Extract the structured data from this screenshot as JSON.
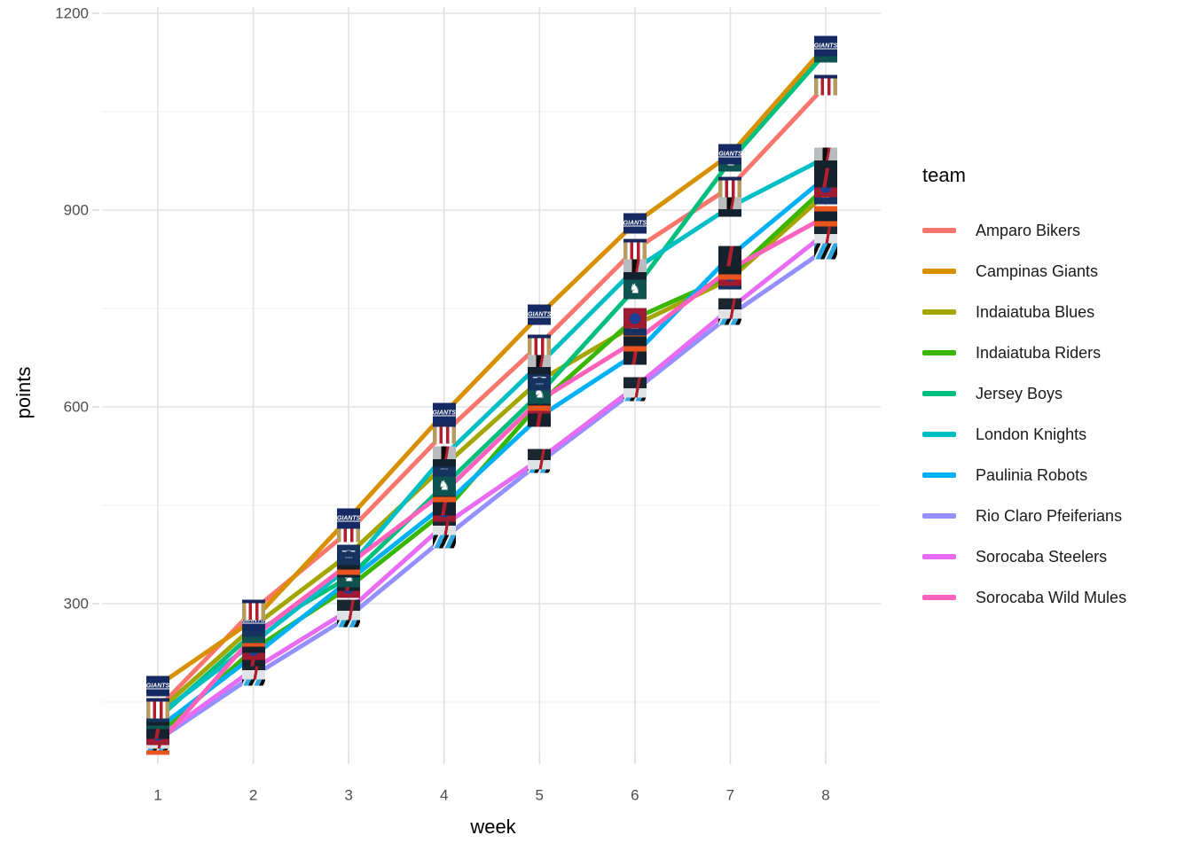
{
  "figure": {
    "type": "line-chart",
    "background": "#ffffff"
  },
  "y_axis": {
    "label": "points",
    "ticks": [
      1200,
      900,
      600,
      300
    ],
    "minor_gridlines": [
      1050,
      750,
      450,
      150
    ]
  },
  "x_axis": {
    "label": "week",
    "ticks": [
      1,
      2,
      3,
      4,
      5,
      6,
      7,
      8
    ]
  },
  "legend": {
    "title": "team",
    "items": [
      {
        "label": "Amparo Bikers",
        "color": "#F8766D"
      },
      {
        "label": "Campinas Giants",
        "color": "#D89000"
      },
      {
        "label": "Indaiatuba Blues",
        "color": "#A3A500"
      },
      {
        "label": "Indaiatuba Riders",
        "color": "#39B600"
      },
      {
        "label": "Jersey Boys",
        "color": "#00BF7D"
      },
      {
        "label": "London Knights",
        "color": "#00BFC4"
      },
      {
        "label": "Paulinia Robots",
        "color": "#00B0F6"
      },
      {
        "label": "Rio Claro Pfeiferians",
        "color": "#9590FF"
      },
      {
        "label": "Sorocaba Steelers",
        "color": "#E76BF3"
      },
      {
        "label": "Sorocaba Wild Mules",
        "color": "#FF62BC"
      }
    ]
  },
  "chart_data": {
    "type": "line",
    "x": [
      1,
      2,
      3,
      4,
      5,
      6,
      7,
      8
    ],
    "xlabel": "week",
    "ylabel": "points",
    "ylim": [
      60,
      1210
    ],
    "grid": "major+minor",
    "legend_position": "right",
    "point_marker": "team-logo-image",
    "series": [
      {
        "name": "Amparo Bikers",
        "color": "#F8766D",
        "logo_icon": "amparo-bikers-logo",
        "values": [
          140,
          290,
          410,
          560,
          695,
          840,
          935,
          1090
        ]
      },
      {
        "name": "Campinas Giants",
        "color": "#D89000",
        "logo_icon": "campinas-giants-logo",
        "values": [
          175,
          275,
          430,
          590,
          740,
          880,
          985,
          1150
        ]
      },
      {
        "name": "Indaiatuba Blues",
        "color": "#A3A500",
        "logo_icon": "indaiatuba-blues-logo",
        "values": [
          135,
          265,
          375,
          510,
          640,
          725,
          795,
          925
        ]
      },
      {
        "name": "Indaiatuba Riders",
        "color": "#39B600",
        "logo_icon": "indaiatuba-riders-logo",
        "values": [
          100,
          230,
          325,
          440,
          605,
          735,
          800,
          935
        ]
      },
      {
        "name": "Jersey Boys",
        "color": "#00BF7D",
        "logo_icon": "jersey-boys-logo",
        "values": [
          125,
          255,
          340,
          480,
          620,
          780,
          975,
          1140
        ]
      },
      {
        "name": "London Knights",
        "color": "#00BFC4",
        "logo_icon": "london-knights-logo",
        "values": [
          130,
          240,
          355,
          525,
          665,
          810,
          905,
          980
        ]
      },
      {
        "name": "Paulinia Robots",
        "color": "#00B0F6",
        "logo_icon": "paulinia-robots-logo",
        "values": [
          110,
          220,
          335,
          450,
          585,
          680,
          830,
          950
        ]
      },
      {
        "name": "Rio Claro Pfeiferians",
        "color": "#9590FF",
        "logo_icon": "rio-claro-pfeiferians-logo",
        "values": [
          92,
          190,
          280,
          400,
          515,
          625,
          740,
          840
        ]
      },
      {
        "name": "Sorocaba Steelers",
        "color": "#E76BF3",
        "logo_icon": "sorocaba-steelers-logo",
        "values": [
          95,
          200,
          290,
          420,
          520,
          630,
          750,
          865
        ]
      },
      {
        "name": "Sorocaba Wild Mules",
        "color": "#FF62BC",
        "logo_icon": "sorocaba-wild-mules-logo",
        "values": [
          85,
          250,
          360,
          470,
          610,
          700,
          810,
          890
        ]
      }
    ]
  },
  "style": {
    "grid_major_color": "#e2e2e2",
    "grid_minor_color": "#f1f1f1",
    "tick_text_color": "#4d4d4d",
    "axis_title_color": "#000000"
  }
}
